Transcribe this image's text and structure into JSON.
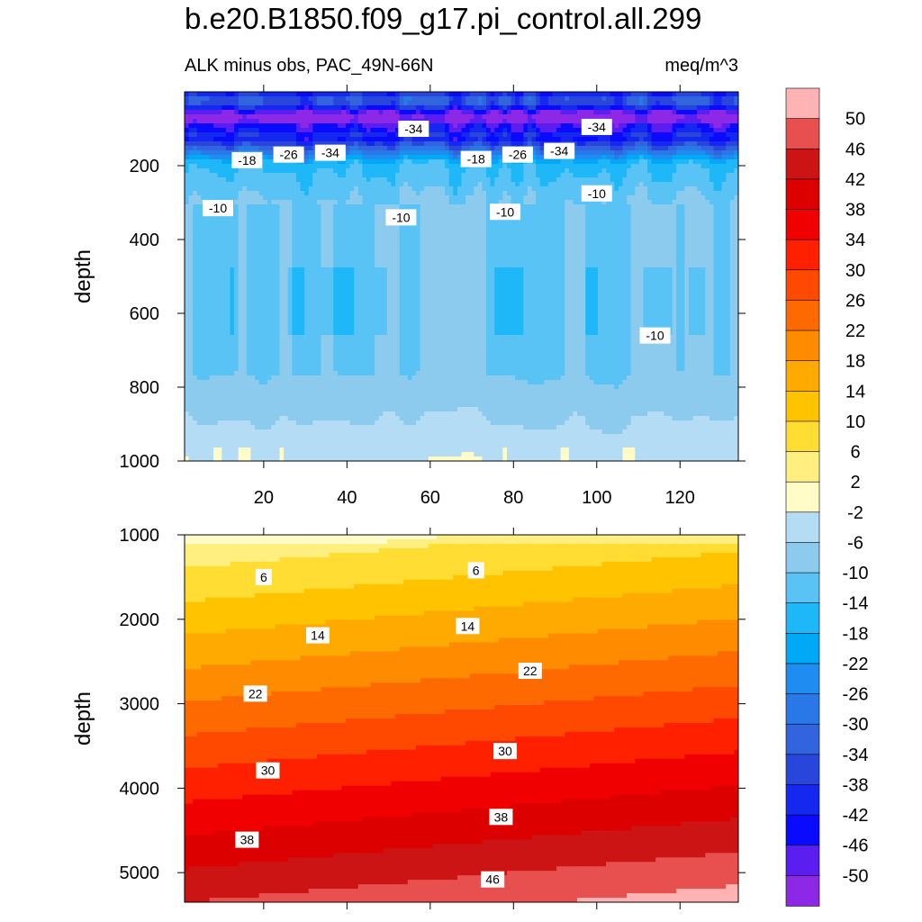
{
  "title": "b.e20.B1850.f09_g17.pi_control.all.299",
  "subtitle_left": "ALK minus obs, PAC_49N-66N",
  "subtitle_right": "meq/m^3",
  "colorbar": {
    "labels": [
      "50",
      "46",
      "42",
      "38",
      "34",
      "30",
      "26",
      "22",
      "18",
      "14",
      "10",
      "6",
      "2",
      "-2",
      "-6",
      "-10",
      "-14",
      "-18",
      "-22",
      "-26",
      "-30",
      "-34",
      "-38",
      "-42",
      "-46",
      "-50"
    ],
    "colors_top_to_bottom": [
      "#ffb3b3",
      "#e85050",
      "#cc1414",
      "#dc0000",
      "#f00000",
      "#ff2000",
      "#ff4800",
      "#ff6a00",
      "#ff8c00",
      "#ffaa00",
      "#ffc300",
      "#ffdd33",
      "#ffee80",
      "#fffcc8",
      "#b4dcf4",
      "#8ccbee",
      "#5ac3f5",
      "#1eb8f8",
      "#00a8f8",
      "#1e8cf0",
      "#2878e8",
      "#3264e0",
      "#2846dc",
      "#1428f0",
      "#0a0aff",
      "#5a1ef0",
      "#8c28e6"
    ]
  },
  "chart_data": [
    {
      "type": "contour",
      "panel": "upper",
      "ylabel": "depth",
      "xlabel": "",
      "xlim": [
        1,
        134
      ],
      "ylim": [
        1000,
        0
      ],
      "x_ticks": [
        20,
        40,
        60,
        80,
        100,
        120
      ],
      "y_ticks": [
        200,
        400,
        600,
        800,
        1000
      ],
      "contour_labels": [
        {
          "value": "-34",
          "x": 56,
          "y": 100
        },
        {
          "value": "-34",
          "x": 100,
          "y": 95
        },
        {
          "value": "-34",
          "x": 36,
          "y": 165
        },
        {
          "value": "-34",
          "x": 91,
          "y": 160
        },
        {
          "value": "-26",
          "x": 26,
          "y": 170
        },
        {
          "value": "-26",
          "x": 81,
          "y": 170
        },
        {
          "value": "-18",
          "x": 16,
          "y": 185
        },
        {
          "value": "-18",
          "x": 71,
          "y": 182
        },
        {
          "value": "-10",
          "x": 9,
          "y": 315
        },
        {
          "value": "-10",
          "x": 53,
          "y": 340
        },
        {
          "value": "-10",
          "x": 78,
          "y": 325
        },
        {
          "value": "-10",
          "x": 100,
          "y": 275
        },
        {
          "value": "-10",
          "x": 114,
          "y": 660
        }
      ]
    },
    {
      "type": "contour",
      "panel": "lower",
      "ylabel": "depth",
      "xlabel": "",
      "xlim": [
        1,
        134
      ],
      "ylim": [
        5350,
        1000
      ],
      "x_ticks": [
        20,
        40,
        60,
        80,
        100,
        120
      ],
      "y_ticks": [
        1000,
        2000,
        3000,
        4000,
        5000
      ],
      "contour_labels": [
        {
          "value": "6",
          "x": 20,
          "y": 1500
        },
        {
          "value": "6",
          "x": 71,
          "y": 1420
        },
        {
          "value": "14",
          "x": 33,
          "y": 2190
        },
        {
          "value": "14",
          "x": 69,
          "y": 2080
        },
        {
          "value": "22",
          "x": 18,
          "y": 2880
        },
        {
          "value": "22",
          "x": 84,
          "y": 2610
        },
        {
          "value": "30",
          "x": 21,
          "y": 3790
        },
        {
          "value": "30",
          "x": 78,
          "y": 3560
        },
        {
          "value": "38",
          "x": 16,
          "y": 4610
        },
        {
          "value": "38",
          "x": 77,
          "y": 4340
        },
        {
          "value": "46",
          "x": 75,
          "y": 5080
        }
      ]
    }
  ]
}
